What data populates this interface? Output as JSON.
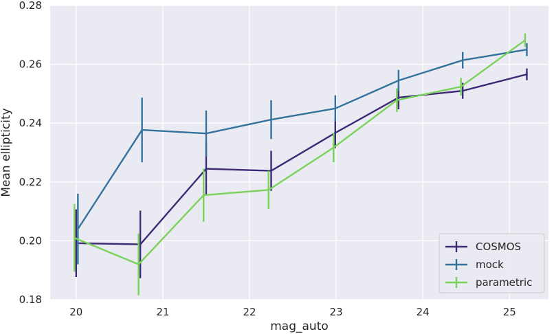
{
  "chart_data": {
    "type": "line",
    "xlabel": "mag_auto",
    "ylabel": "Mean ellipticity",
    "xlim": [
      19.7,
      25.45
    ],
    "ylim": [
      0.18,
      0.28
    ],
    "xticks": [
      20,
      21,
      22,
      23,
      24,
      25
    ],
    "yticks": [
      0.18,
      0.2,
      0.22,
      0.24,
      0.26,
      0.28
    ],
    "xtick_labels": [
      "20",
      "21",
      "22",
      "23",
      "24",
      "25"
    ],
    "ytick_labels": [
      "0.18",
      "0.20",
      "0.22",
      "0.24",
      "0.26",
      "0.28"
    ],
    "grid": true,
    "legend_position": "lower-right",
    "series": [
      {
        "name": "COSMOS",
        "color": "#3f2a77",
        "x": [
          20.0,
          20.74,
          21.5,
          22.25,
          22.99,
          23.72,
          24.46,
          25.2
        ],
        "y": [
          0.1992,
          0.1988,
          0.2245,
          0.2238,
          0.2367,
          0.2487,
          0.251,
          0.2566
        ],
        "err": [
          0.0115,
          0.0115,
          0.009,
          0.0068,
          0.0052,
          0.004,
          0.0027,
          0.002
        ]
      },
      {
        "name": "mock",
        "color": "#34729b",
        "x": [
          20.02,
          20.76,
          21.5,
          22.25,
          22.99,
          23.72,
          24.46,
          25.2
        ],
        "y": [
          0.204,
          0.2377,
          0.2365,
          0.2412,
          0.245,
          0.2545,
          0.2614,
          0.265
        ],
        "err": [
          0.012,
          0.011,
          0.0078,
          0.0066,
          0.0045,
          0.0036,
          0.0028,
          0.0022
        ]
      },
      {
        "name": "parametric",
        "color": "#7bd25a",
        "x": [
          19.98,
          20.72,
          21.47,
          22.22,
          22.97,
          23.7,
          24.44,
          25.18
        ],
        "y": [
          0.201,
          0.192,
          0.2155,
          0.2173,
          0.2317,
          0.2478,
          0.2524,
          0.2682
        ],
        "err": [
          0.0115,
          0.0105,
          0.009,
          0.0065,
          0.005,
          0.004,
          0.003,
          0.0023
        ]
      }
    ]
  }
}
